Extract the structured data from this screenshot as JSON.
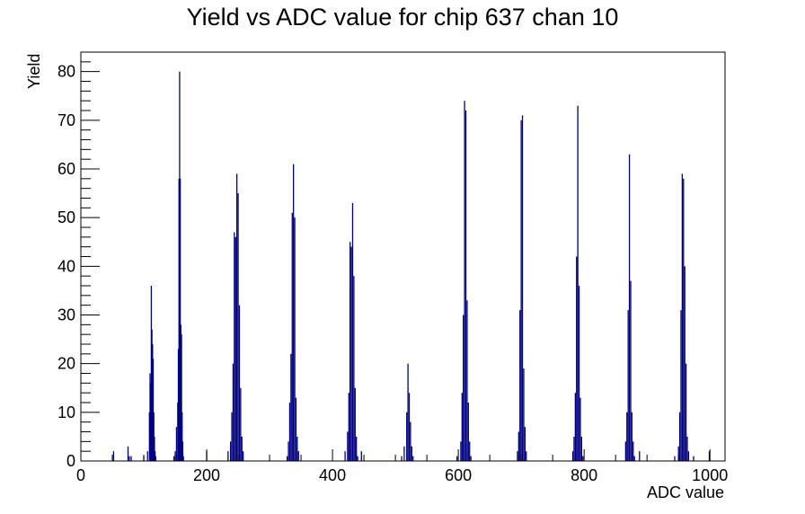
{
  "chart_data": {
    "type": "histogram",
    "title": "Yield vs ADC value for chip 637 chan 10",
    "xlabel": "ADC value",
    "ylabel": "Yield",
    "xlim": [
      0,
      1024
    ],
    "ylim": [
      0,
      84
    ],
    "xticks": [
      0,
      200,
      400,
      600,
      800,
      1000
    ],
    "yticks": [
      0,
      10,
      20,
      30,
      40,
      50,
      60,
      70,
      80
    ],
    "grid": false,
    "line_color": "#000080",
    "bins": [
      {
        "x": 52,
        "y": 2
      },
      {
        "x": 75,
        "y": 3
      },
      {
        "x": 77,
        "y": 1
      },
      {
        "x": 80,
        "y": 1
      },
      {
        "x": 100,
        "y": 1
      },
      {
        "x": 106,
        "y": 2
      },
      {
        "x": 109,
        "y": 10
      },
      {
        "x": 110,
        "y": 18
      },
      {
        "x": 111,
        "y": 16
      },
      {
        "x": 112,
        "y": 36
      },
      {
        "x": 113,
        "y": 27
      },
      {
        "x": 114,
        "y": 24
      },
      {
        "x": 115,
        "y": 21
      },
      {
        "x": 116,
        "y": 10
      },
      {
        "x": 117,
        "y": 5
      },
      {
        "x": 118,
        "y": 2
      },
      {
        "x": 119,
        "y": 1
      },
      {
        "x": 148,
        "y": 1
      },
      {
        "x": 150,
        "y": 2
      },
      {
        "x": 152,
        "y": 7
      },
      {
        "x": 154,
        "y": 12
      },
      {
        "x": 155,
        "y": 23
      },
      {
        "x": 156,
        "y": 58
      },
      {
        "x": 157,
        "y": 80
      },
      {
        "x": 158,
        "y": 58
      },
      {
        "x": 159,
        "y": 28
      },
      {
        "x": 160,
        "y": 26
      },
      {
        "x": 161,
        "y": 10
      },
      {
        "x": 162,
        "y": 4
      },
      {
        "x": 163,
        "y": 1
      },
      {
        "x": 200,
        "y": 2
      },
      {
        "x": 234,
        "y": 2
      },
      {
        "x": 238,
        "y": 4
      },
      {
        "x": 240,
        "y": 10
      },
      {
        "x": 242,
        "y": 20
      },
      {
        "x": 244,
        "y": 47
      },
      {
        "x": 246,
        "y": 46
      },
      {
        "x": 248,
        "y": 59
      },
      {
        "x": 250,
        "y": 55
      },
      {
        "x": 252,
        "y": 32
      },
      {
        "x": 254,
        "y": 15
      },
      {
        "x": 256,
        "y": 5
      },
      {
        "x": 258,
        "y": 2
      },
      {
        "x": 328,
        "y": 1
      },
      {
        "x": 330,
        "y": 4
      },
      {
        "x": 332,
        "y": 12
      },
      {
        "x": 334,
        "y": 22
      },
      {
        "x": 336,
        "y": 51
      },
      {
        "x": 338,
        "y": 61
      },
      {
        "x": 340,
        "y": 50
      },
      {
        "x": 342,
        "y": 13
      },
      {
        "x": 344,
        "y": 5
      },
      {
        "x": 346,
        "y": 2
      },
      {
        "x": 420,
        "y": 2
      },
      {
        "x": 424,
        "y": 6
      },
      {
        "x": 426,
        "y": 14
      },
      {
        "x": 428,
        "y": 45
      },
      {
        "x": 430,
        "y": 44
      },
      {
        "x": 432,
        "y": 53
      },
      {
        "x": 434,
        "y": 38
      },
      {
        "x": 436,
        "y": 15
      },
      {
        "x": 438,
        "y": 5
      },
      {
        "x": 440,
        "y": 1
      },
      {
        "x": 446,
        "y": 2
      },
      {
        "x": 510,
        "y": 1
      },
      {
        "x": 514,
        "y": 3
      },
      {
        "x": 518,
        "y": 10
      },
      {
        "x": 520,
        "y": 20
      },
      {
        "x": 522,
        "y": 14
      },
      {
        "x": 524,
        "y": 8
      },
      {
        "x": 526,
        "y": 3
      },
      {
        "x": 528,
        "y": 1
      },
      {
        "x": 598,
        "y": 1
      },
      {
        "x": 604,
        "y": 4
      },
      {
        "x": 606,
        "y": 14
      },
      {
        "x": 608,
        "y": 30
      },
      {
        "x": 610,
        "y": 74
      },
      {
        "x": 612,
        "y": 72
      },
      {
        "x": 614,
        "y": 33
      },
      {
        "x": 616,
        "y": 12
      },
      {
        "x": 618,
        "y": 4
      },
      {
        "x": 620,
        "y": 1
      },
      {
        "x": 694,
        "y": 2
      },
      {
        "x": 696,
        "y": 6
      },
      {
        "x": 698,
        "y": 31
      },
      {
        "x": 700,
        "y": 70
      },
      {
        "x": 702,
        "y": 71
      },
      {
        "x": 704,
        "y": 19
      },
      {
        "x": 706,
        "y": 7
      },
      {
        "x": 708,
        "y": 2
      },
      {
        "x": 782,
        "y": 2
      },
      {
        "x": 784,
        "y": 5
      },
      {
        "x": 786,
        "y": 14
      },
      {
        "x": 788,
        "y": 42
      },
      {
        "x": 790,
        "y": 73
      },
      {
        "x": 792,
        "y": 36
      },
      {
        "x": 794,
        "y": 13
      },
      {
        "x": 796,
        "y": 5
      },
      {
        "x": 798,
        "y": 1
      },
      {
        "x": 866,
        "y": 4
      },
      {
        "x": 868,
        "y": 10
      },
      {
        "x": 870,
        "y": 31
      },
      {
        "x": 872,
        "y": 63
      },
      {
        "x": 874,
        "y": 37
      },
      {
        "x": 876,
        "y": 10
      },
      {
        "x": 878,
        "y": 4
      },
      {
        "x": 880,
        "y": 1
      },
      {
        "x": 888,
        "y": 2
      },
      {
        "x": 944,
        "y": 1
      },
      {
        "x": 950,
        "y": 3
      },
      {
        "x": 952,
        "y": 10
      },
      {
        "x": 954,
        "y": 31
      },
      {
        "x": 956,
        "y": 59
      },
      {
        "x": 958,
        "y": 58
      },
      {
        "x": 960,
        "y": 40
      },
      {
        "x": 962,
        "y": 20
      },
      {
        "x": 964,
        "y": 5
      },
      {
        "x": 966,
        "y": 2
      },
      {
        "x": 974,
        "y": 1
      },
      {
        "x": 999,
        "y": 2
      }
    ]
  }
}
